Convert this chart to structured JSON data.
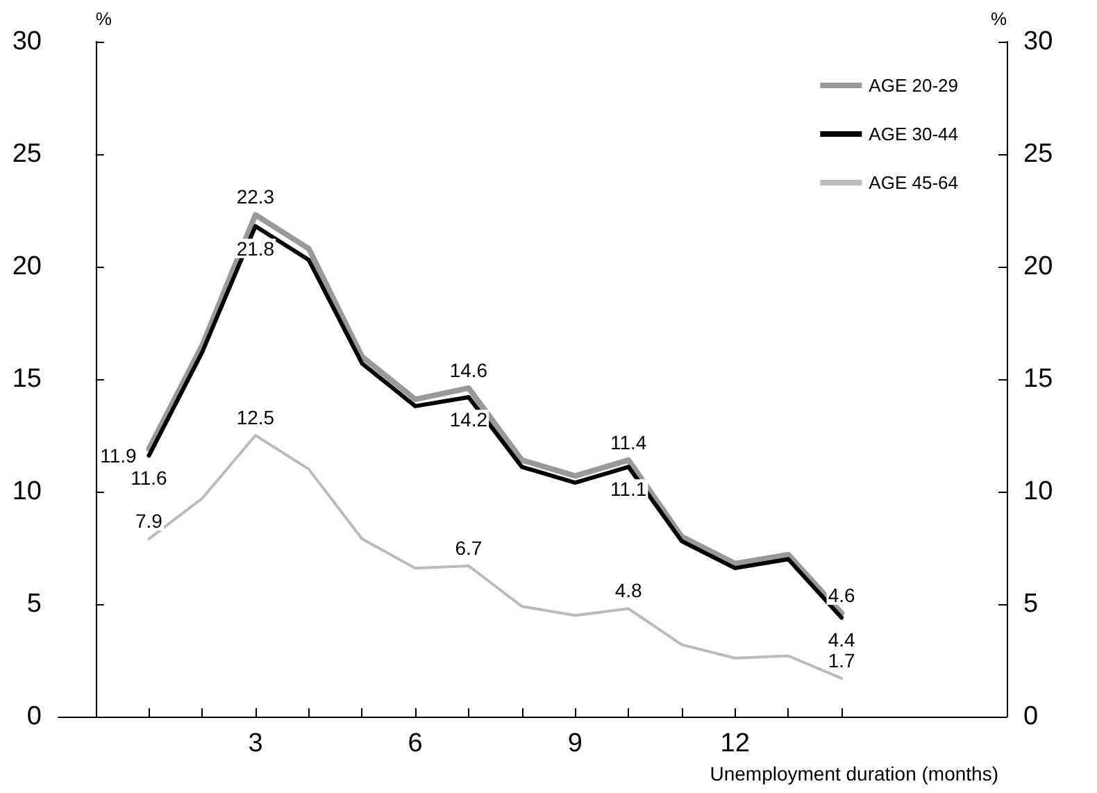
{
  "chart_data": {
    "type": "line",
    "xlabel": "Unemployment duration (months)",
    "ylabel": "%",
    "y2label": "%",
    "x": [
      1,
      2,
      3,
      4,
      5,
      6,
      7,
      8,
      9,
      10,
      11,
      12,
      13,
      14
    ],
    "xlim": [
      -0.7,
      17.1
    ],
    "xticks": [
      {
        "value": 1,
        "label": null
      },
      {
        "value": 2,
        "label": null
      },
      3,
      {
        "value": 4,
        "label": null
      },
      {
        "value": 5,
        "label": null
      },
      6,
      {
        "value": 7,
        "label": null
      },
      {
        "value": 8,
        "label": null
      },
      9,
      {
        "value": 10,
        "label": null
      },
      {
        "value": 11,
        "label": null
      },
      12,
      {
        "value": 13,
        "label": null
      },
      {
        "value": 14,
        "label": null
      }
    ],
    "ylim": [
      0,
      30
    ],
    "yticks": [
      0,
      5,
      10,
      15,
      20,
      25,
      30
    ],
    "y2lim": [
      0,
      30
    ],
    "y2ticks": [
      0,
      5,
      10,
      15,
      20,
      25,
      30
    ],
    "grid": false,
    "legend": "top right",
    "marker": "none",
    "line_style": "solid",
    "series": [
      {
        "name": "AGE 20-29",
        "color": "#999999",
        "values": [
          11.9,
          16.5,
          22.3,
          20.8,
          16.0,
          14.1,
          14.6,
          11.4,
          10.7,
          11.4,
          8.0,
          6.8,
          7.2,
          4.6
        ],
        "value_labels": [
          "11.9",
          null,
          "22.3",
          null,
          null,
          null,
          "14.6",
          null,
          null,
          "11.4",
          null,
          null,
          null,
          "4.6"
        ]
      },
      {
        "name": "AGE 30-44",
        "color": "#000000",
        "values": [
          11.6,
          16.2,
          21.8,
          20.3,
          15.7,
          13.8,
          14.2,
          11.1,
          10.4,
          11.1,
          7.8,
          6.6,
          7.0,
          4.4
        ],
        "value_labels": [
          "11.6",
          null,
          "21.8",
          null,
          null,
          null,
          "14.2",
          null,
          null,
          "11.1",
          null,
          null,
          null,
          "4.4"
        ]
      },
      {
        "name": "AGE 45-64",
        "color": "#bbbbbb",
        "values": [
          7.9,
          9.7,
          12.5,
          11.0,
          7.9,
          6.6,
          6.7,
          4.9,
          4.5,
          4.8,
          3.2,
          2.6,
          2.7,
          1.7
        ],
        "value_labels": [
          "7.9",
          null,
          "12.5",
          null,
          null,
          null,
          "6.7",
          null,
          null,
          "4.8",
          null,
          null,
          null,
          "1.7"
        ]
      }
    ]
  }
}
